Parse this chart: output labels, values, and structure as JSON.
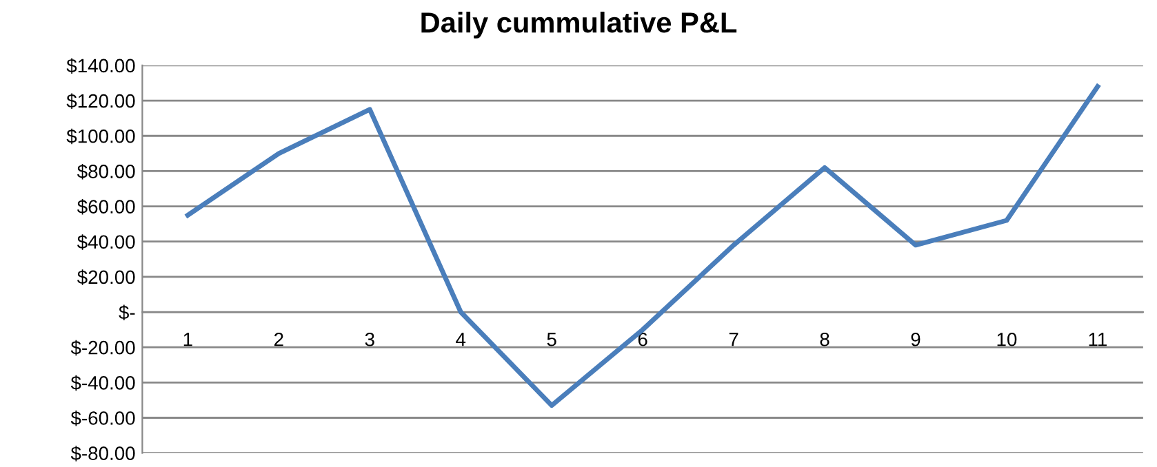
{
  "chart_data": {
    "type": "line",
    "title": "Daily cummulative P&L",
    "categories": [
      "1",
      "2",
      "3",
      "4",
      "5",
      "6",
      "7",
      "8",
      "9",
      "10",
      "11"
    ],
    "series": [
      {
        "color": "#4a7ebb",
        "values": [
          55,
          90,
          115,
          0,
          -53,
          -10,
          38,
          82,
          38,
          52,
          128
        ]
      }
    ],
    "ylim": [
      -80,
      140
    ],
    "yticks": [
      {
        "value": 140,
        "label": "$140.00"
      },
      {
        "value": 120,
        "label": "$120.00"
      },
      {
        "value": 100,
        "label": "$100.00"
      },
      {
        "value": 80,
        "label": "$80.00"
      },
      {
        "value": 60,
        "label": "$60.00"
      },
      {
        "value": 40,
        "label": "$40.00"
      },
      {
        "value": 20,
        "label": "$20.00"
      },
      {
        "value": 0,
        "label": "$-"
      },
      {
        "value": -20,
        "label": "$-20.00"
      },
      {
        "value": -40,
        "label": "$-40.00"
      },
      {
        "value": -60,
        "label": "$-60.00"
      },
      {
        "value": -80,
        "label": "$-80.00"
      }
    ],
    "grid": "y",
    "legend": false,
    "marker": "none",
    "line_style": "solid"
  }
}
